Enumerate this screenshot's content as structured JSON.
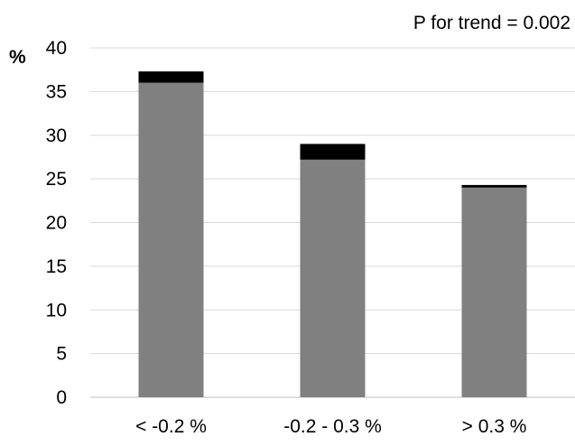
{
  "chart_data": {
    "type": "bar",
    "stacked": true,
    "categories": [
      "< -0.2 %",
      "-0.2 - 0.3 %",
      "> 0.3 %"
    ],
    "series": [
      {
        "values": [
          36.0,
          27.2,
          24.0
        ],
        "color": "#808080"
      },
      {
        "values": [
          1.3,
          1.8,
          0.3
        ],
        "color": "#000000"
      }
    ],
    "ylabel": "%",
    "ylim": [
      0,
      40
    ],
    "yticks": [
      0,
      5,
      10,
      15,
      20,
      25,
      30,
      35,
      40
    ],
    "grid": true,
    "legend": "none",
    "annotation": "P for trend = 0.002"
  }
}
